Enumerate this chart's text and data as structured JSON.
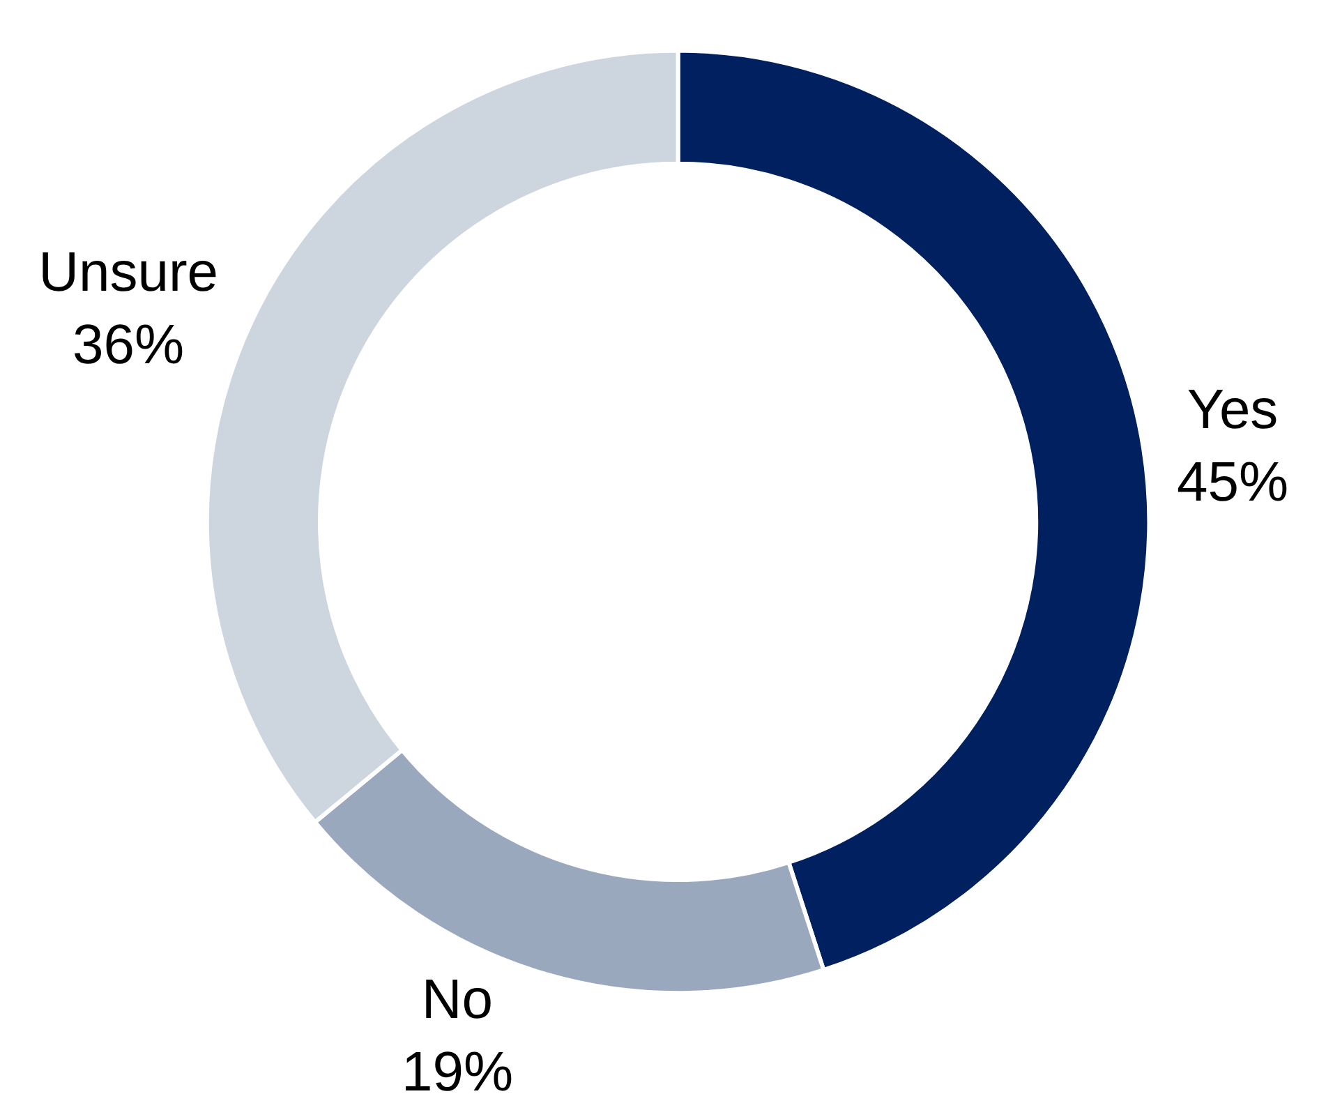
{
  "chart_data": {
    "type": "donut",
    "categories": [
      "Yes",
      "No",
      "Unsure"
    ],
    "values": [
      45,
      19,
      36
    ],
    "colors": [
      "#002060",
      "#9aa8be",
      "#cdd5df"
    ],
    "value_labels": [
      "45%",
      "19%",
      "36%"
    ]
  }
}
